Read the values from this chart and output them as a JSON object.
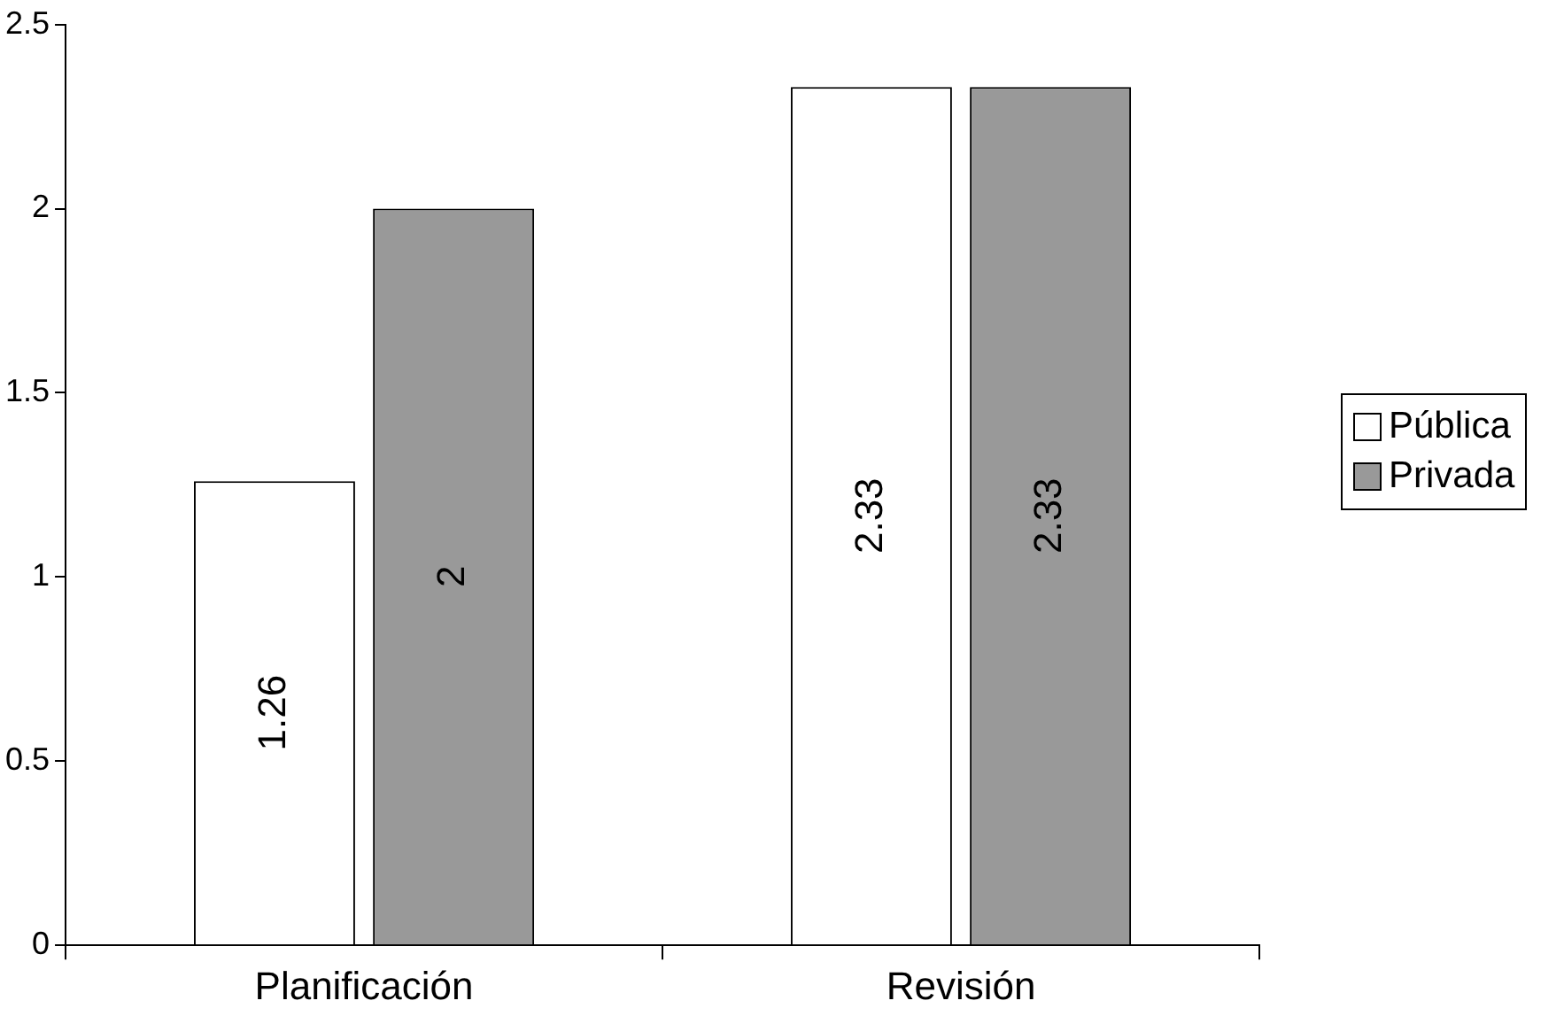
{
  "chart_data": {
    "type": "bar",
    "categories": [
      "Planificación",
      "Revisión"
    ],
    "series": [
      {
        "name": "Pública",
        "color": "#ffffff",
        "values": [
          1.26,
          2.33
        ]
      },
      {
        "name": "Privada",
        "color": "#999999",
        "values": [
          2,
          2.33
        ]
      }
    ],
    "ylim": [
      0,
      2.5
    ],
    "yticks": [
      0,
      0.5,
      1,
      1.5,
      2,
      2.5
    ],
    "grid": false,
    "legend": "right",
    "data_labels": true
  }
}
